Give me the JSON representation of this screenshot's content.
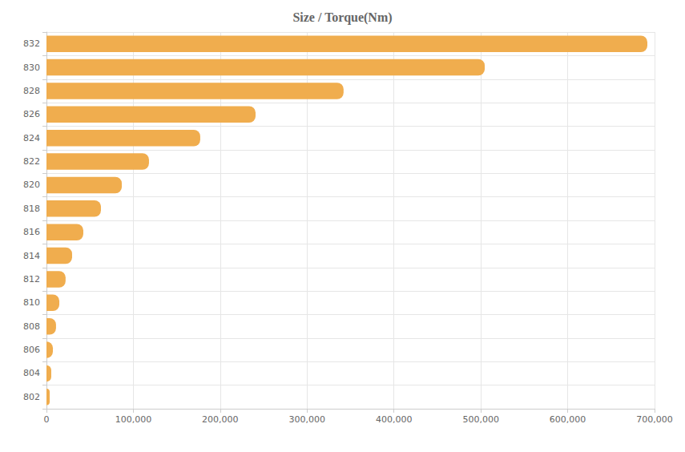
{
  "chart_data": {
    "type": "bar",
    "title": "Size / Torque(Nm)",
    "orientation": "horizontal",
    "categories": [
      "802",
      "804",
      "806",
      "808",
      "810",
      "812",
      "814",
      "816",
      "818",
      "820",
      "822",
      "824",
      "826",
      "828",
      "830",
      "832"
    ],
    "values": [
      3700,
      5500,
      7400,
      11000,
      14800,
      22000,
      29500,
      42400,
      62700,
      86700,
      118000,
      177000,
      240700,
      342000,
      504500,
      691700
    ],
    "color": "#f0ad4e",
    "xlim": [
      0,
      700000
    ],
    "xticks": [
      0,
      {
        "value": 100000,
        "label": "100,000"
      },
      {
        "value": 200000,
        "label": "200,000"
      },
      {
        "value": 300000,
        "label": "300,000"
      },
      {
        "value": 400000,
        "label": "400,000"
      },
      {
        "value": 500000,
        "label": "500,000"
      },
      {
        "value": 600000,
        "label": "600,000"
      },
      {
        "value": 700000,
        "label": "700,000"
      }
    ],
    "grid": true
  }
}
